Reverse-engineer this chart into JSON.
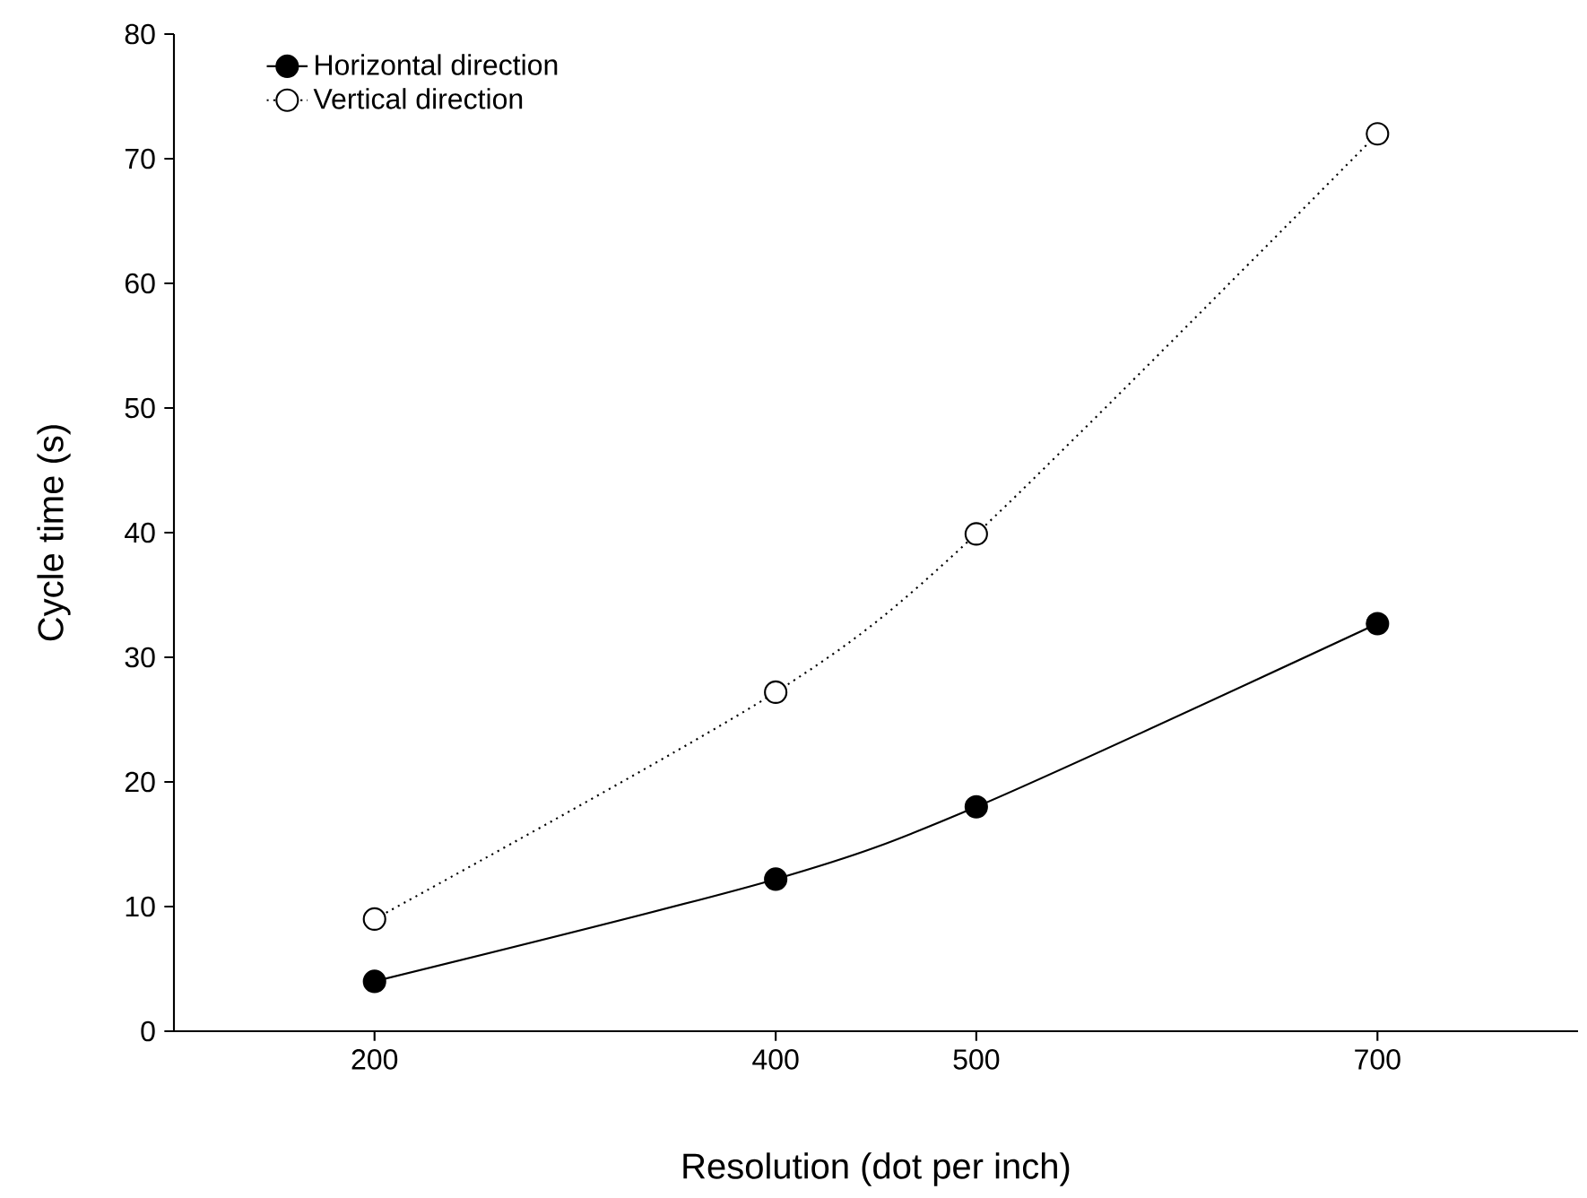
{
  "chart_data": {
    "type": "line",
    "xlabel": "Resolution (dot per inch)",
    "ylabel": "Cycle time (s)",
    "x": [
      200,
      400,
      500,
      700
    ],
    "series": [
      {
        "name": "Horizontal direction",
        "color": "#000000",
        "line_style": "solid",
        "values": [
          4,
          12.2,
          18,
          32.7
        ]
      },
      {
        "name": "Vertical direction",
        "color": "#000000",
        "line_style": "dotted",
        "values": [
          9,
          27.2,
          39.9,
          72
        ]
      }
    ],
    "xlim": [
      100,
      800
    ],
    "xticks": [
      200,
      400,
      500,
      700
    ],
    "ylim": [
      0,
      80
    ],
    "yticks": [
      0,
      10,
      20,
      30,
      40,
      50,
      60,
      70,
      80
    ],
    "marker": "circle",
    "grid": false,
    "legend": "top left"
  }
}
